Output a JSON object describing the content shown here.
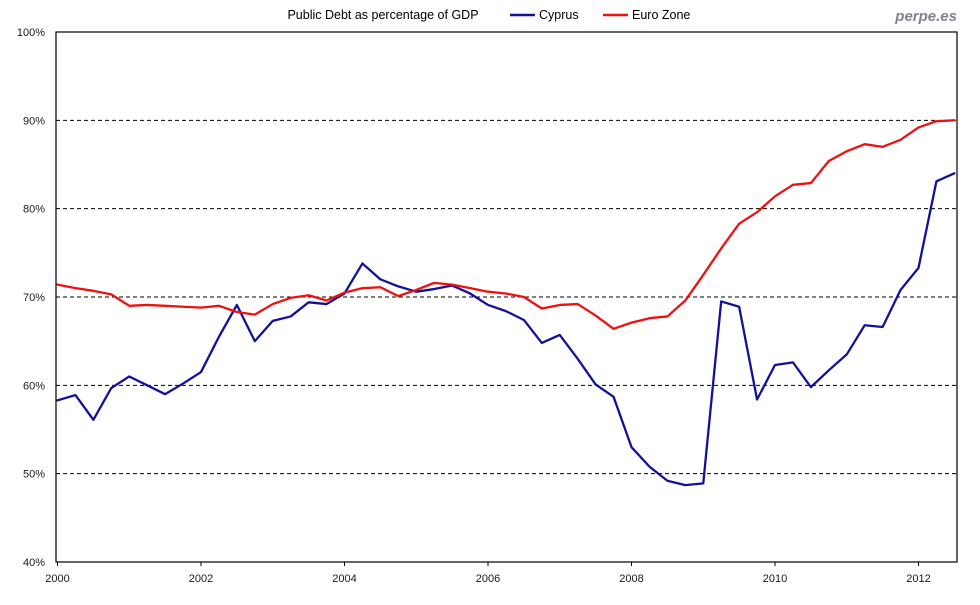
{
  "page": {
    "watermark": "perpe.es"
  },
  "header": {
    "title": "Public Debt as percentage of GDP",
    "legend": [
      {
        "label": "Cyprus",
        "color": "#111199"
      },
      {
        "label": "Euro Zone",
        "color": "#ee1111"
      }
    ]
  },
  "chart_data": {
    "type": "line",
    "title": "Public Debt as percentage of GDP",
    "x_start_year": 2000,
    "x_step_years": 0.25,
    "x_tick_years": [
      2000,
      2002,
      2004,
      2006,
      2008,
      2010,
      2012
    ],
    "xlim": [
      2000,
      2012.55
    ],
    "ylim": [
      40,
      100
    ],
    "y_ticks": [
      40,
      50,
      60,
      70,
      80,
      90,
      100
    ],
    "y_tick_suffix": "%",
    "grid": "horizontal-dashed",
    "legend_position": "top",
    "series": [
      {
        "name": "Cyprus",
        "color": "#111199",
        "values": [
          58.3,
          58.9,
          56.1,
          59.7,
          61.0,
          60.0,
          59.0,
          60.2,
          61.5,
          65.5,
          69.1,
          65.0,
          67.3,
          67.8,
          69.4,
          69.2,
          70.4,
          73.8,
          72.0,
          71.2,
          70.6,
          70.9,
          71.3,
          70.4,
          69.1,
          68.4,
          67.4,
          64.8,
          65.7,
          63.0,
          60.1,
          58.7,
          53.0,
          50.8,
          49.2,
          48.7,
          48.9,
          69.5,
          68.9,
          58.4,
          62.3,
          62.6,
          59.8,
          61.7,
          63.5,
          66.8,
          66.6,
          70.8,
          73.3,
          83.1,
          84.0
        ]
      },
      {
        "name": "Euro Zone",
        "color": "#ee1111",
        "values": [
          71.4,
          71.0,
          70.7,
          70.3,
          69.0,
          69.1,
          69.0,
          68.9,
          68.8,
          69.0,
          68.3,
          68.0,
          69.2,
          69.9,
          70.2,
          69.6,
          70.5,
          71.0,
          71.1,
          70.1,
          70.8,
          71.6,
          71.4,
          71.0,
          70.6,
          70.4,
          70.0,
          68.7,
          69.1,
          69.2,
          67.9,
          66.4,
          67.1,
          67.6,
          67.8,
          69.6,
          72.5,
          75.5,
          78.3,
          79.6,
          81.4,
          82.7,
          82.9,
          85.4,
          86.5,
          87.3,
          87.0,
          87.8,
          89.2,
          89.9,
          90.0
        ]
      }
    ]
  }
}
